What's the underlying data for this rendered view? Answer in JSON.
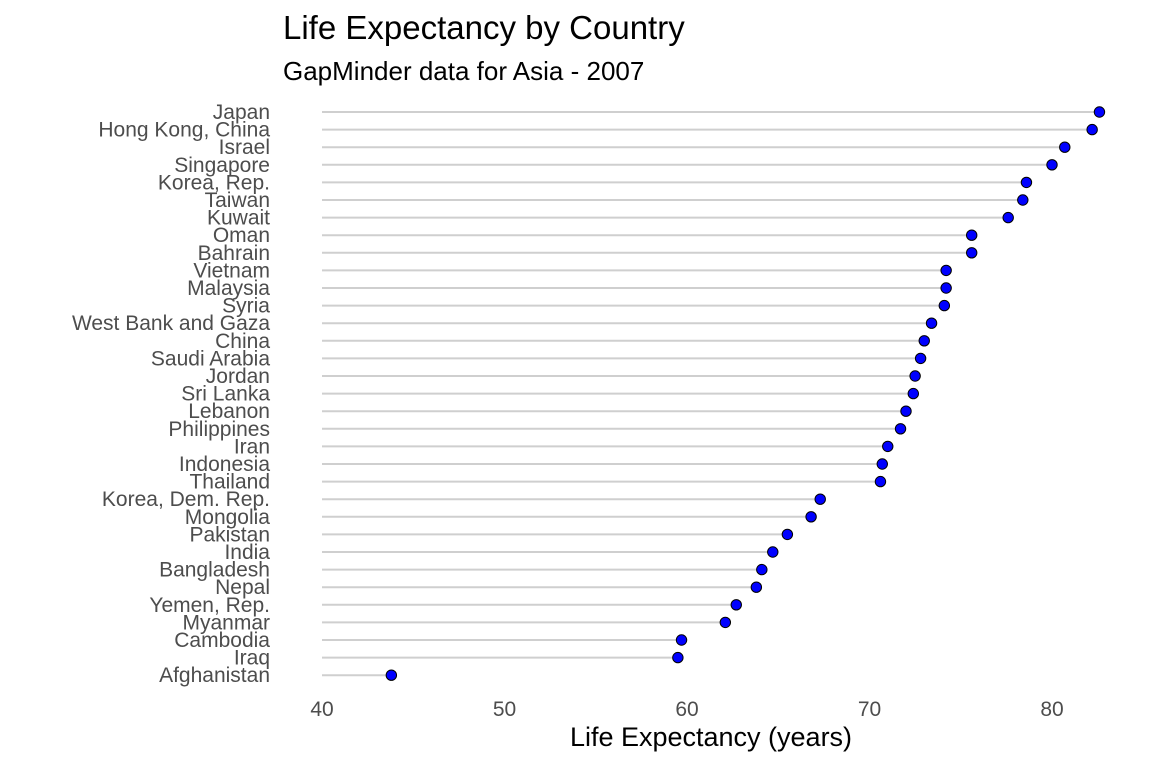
{
  "chart_data": {
    "type": "lollipop",
    "title": "Life Expectancy by Country",
    "subtitle": "GapMinder data for Asia - 2007",
    "xlabel": "Life Expectancy (years)",
    "ylabel": "",
    "xlim": [
      40,
      83
    ],
    "x_segment_start": 40,
    "xticks": [
      40,
      50,
      60,
      70,
      80
    ],
    "grid": false,
    "legend": "none",
    "point_color": "#0000ff",
    "point_outline_color": "#000000",
    "segment_color": "#cfcfcf",
    "categories": [
      "Japan",
      "Hong Kong, China",
      "Israel",
      "Singapore",
      "Korea, Rep.",
      "Taiwan",
      "Kuwait",
      "Oman",
      "Bahrain",
      "Vietnam",
      "Malaysia",
      "Syria",
      "West Bank and Gaza",
      "China",
      "Saudi Arabia",
      "Jordan",
      "Sri Lanka",
      "Lebanon",
      "Philippines",
      "Iran",
      "Indonesia",
      "Thailand",
      "Korea, Dem. Rep.",
      "Mongolia",
      "Pakistan",
      "India",
      "Bangladesh",
      "Nepal",
      "Yemen, Rep.",
      "Myanmar",
      "Cambodia",
      "Iraq",
      "Afghanistan"
    ],
    "values": [
      82.6,
      82.2,
      80.7,
      80.0,
      78.6,
      78.4,
      77.6,
      75.6,
      75.6,
      74.2,
      74.2,
      74.1,
      73.4,
      73.0,
      72.8,
      72.5,
      72.4,
      72.0,
      71.7,
      71.0,
      70.7,
      70.6,
      67.3,
      66.8,
      65.5,
      64.7,
      64.1,
      63.8,
      62.7,
      62.1,
      59.7,
      59.5,
      43.8
    ]
  }
}
